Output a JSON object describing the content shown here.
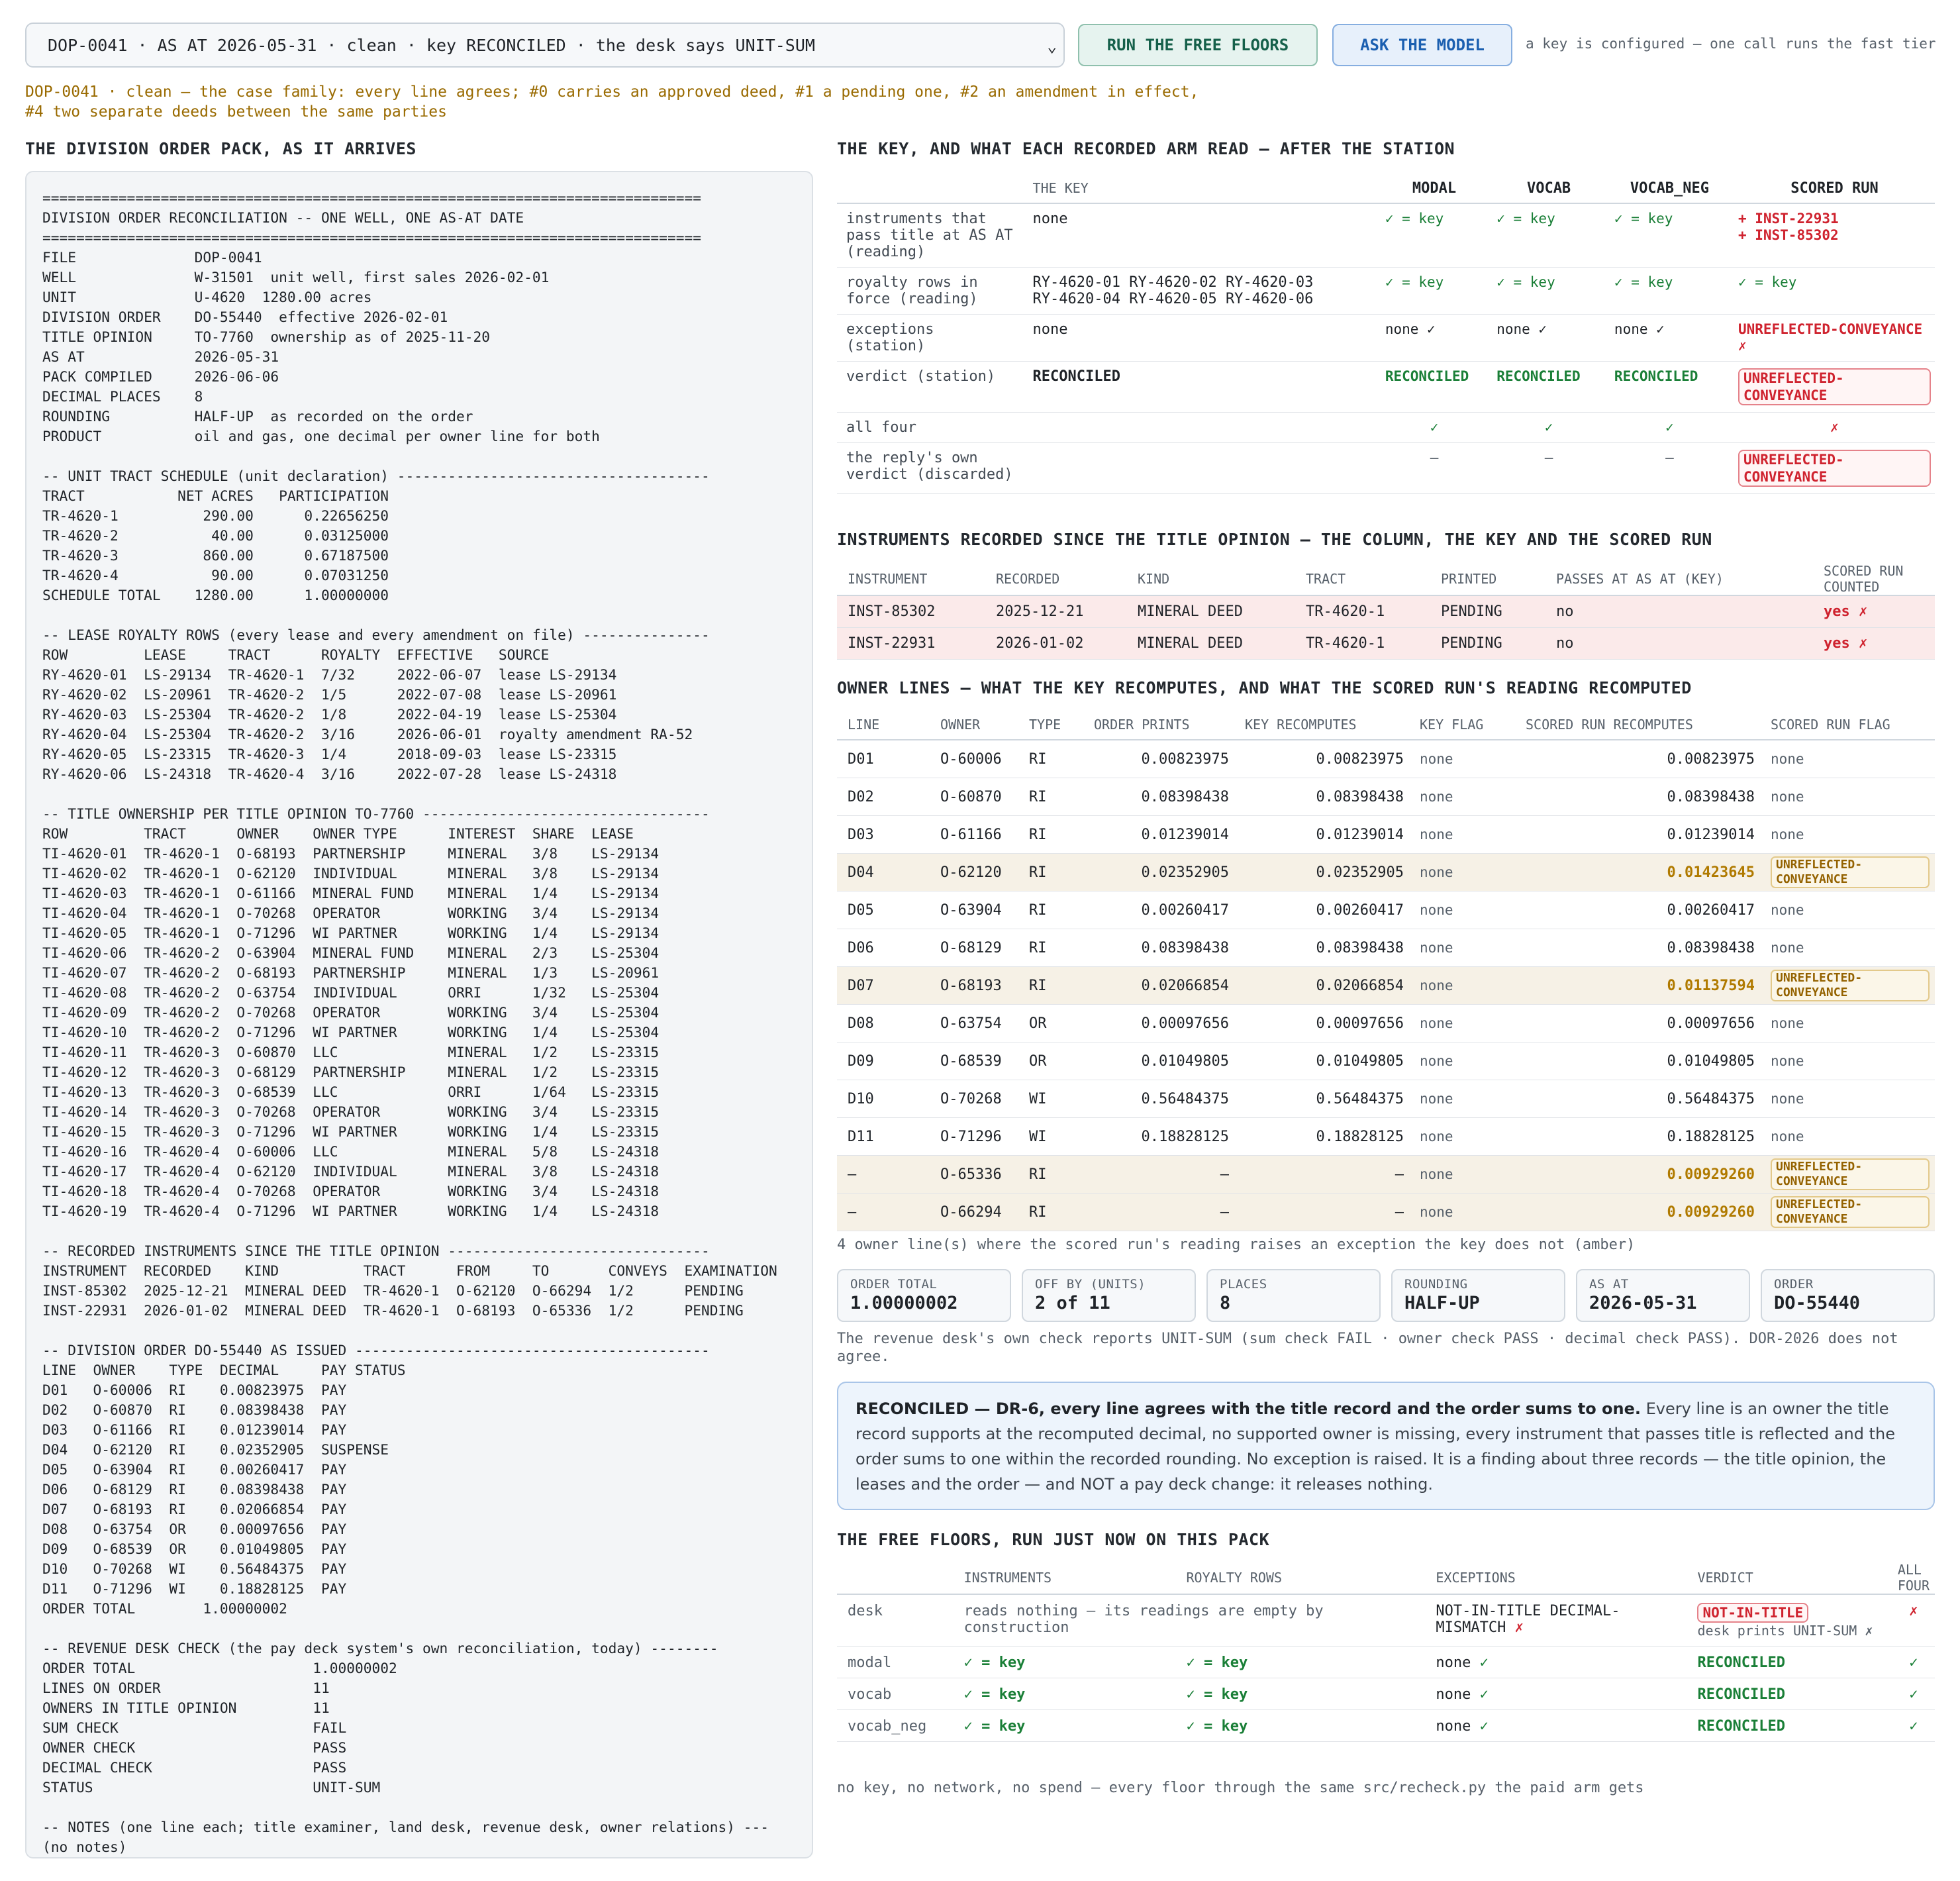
{
  "header": {
    "select_value": "DOP-0041 · AS AT 2026-05-31 · clean · key RECONCILED · the desk says UNIT-SUM",
    "run_floors_label": "RUN THE FREE FLOORS",
    "ask_model_label": "ASK THE MODEL",
    "key_note": "a key is configured — one call runs the fast tier"
  },
  "banner": {
    "line1": "DOP-0041 · clean — the case family: every line agrees; #0 carries an approved deed, #1 a pending one, #2 an amendment in effect,",
    "line2": "#4 two separate deeds between the same parties"
  },
  "sections": {
    "pack": "THE DIVISION ORDER PACK, AS IT ARRIVES",
    "key": "THE KEY, AND WHAT EACH RECORDED ARM READ — AFTER THE STATION",
    "instruments": "INSTRUMENTS RECORDED SINCE THE TITLE OPINION — THE COLUMN, THE KEY AND THE SCORED RUN",
    "owners": "OWNER LINES — WHAT THE KEY RECOMPUTES, AND WHAT THE SCORED RUN'S READING RECOMPUTED",
    "floors": "THE FREE FLOORS, RUN JUST NOW ON THIS PACK"
  },
  "pack_lines": [
    "==============================================================================",
    "DIVISION ORDER RECONCILIATION -- ONE WELL, ONE AS-AT DATE",
    "==============================================================================",
    "FILE              DOP-0041",
    "WELL              W-31501  unit well, first sales 2026-02-01",
    "UNIT              U-4620  1280.00 acres",
    "DIVISION ORDER    DO-55440  effective 2026-02-01",
    "TITLE OPINION     TO-7760  ownership as of 2025-11-20",
    "AS AT             2026-05-31",
    "PACK COMPILED     2026-06-06",
    "DECIMAL PLACES    8",
    "ROUNDING          HALF-UP  as recorded on the order",
    "PRODUCT           oil and gas, one decimal per owner line for both",
    "",
    "-- UNIT TRACT SCHEDULE (unit declaration) -------------------------------------",
    "TRACT           NET ACRES   PARTICIPATION",
    "TR-4620-1          290.00      0.22656250",
    "TR-4620-2           40.00      0.03125000",
    "TR-4620-3          860.00      0.67187500",
    "TR-4620-4           90.00      0.07031250",
    "SCHEDULE TOTAL    1280.00      1.00000000",
    "",
    "-- LEASE ROYALTY ROWS (every lease and every amendment on file) ---------------",
    "ROW         LEASE     TRACT      ROYALTY  EFFECTIVE   SOURCE",
    "RY-4620-01  LS-29134  TR-4620-1  7/32     2022-06-07  lease LS-29134",
    "RY-4620-02  LS-20961  TR-4620-2  1/5      2022-07-08  lease LS-20961",
    "RY-4620-03  LS-25304  TR-4620-2  1/8      2022-04-19  lease LS-25304",
    "RY-4620-04  LS-25304  TR-4620-2  3/16     2026-06-01  royalty amendment RA-52",
    "RY-4620-05  LS-23315  TR-4620-3  1/4      2018-09-03  lease LS-23315",
    "RY-4620-06  LS-24318  TR-4620-4  3/16     2022-07-28  lease LS-24318",
    "",
    "-- TITLE OWNERSHIP PER TITLE OPINION TO-7760 ----------------------------------",
    "ROW         TRACT      OWNER    OWNER TYPE      INTEREST  SHARE  LEASE",
    "TI-4620-01  TR-4620-1  O-68193  PARTNERSHIP     MINERAL   3/8    LS-29134",
    "TI-4620-02  TR-4620-1  O-62120  INDIVIDUAL      MINERAL   3/8    LS-29134",
    "TI-4620-03  TR-4620-1  O-61166  MINERAL FUND    MINERAL   1/4    LS-29134",
    "TI-4620-04  TR-4620-1  O-70268  OPERATOR        WORKING   3/4    LS-29134",
    "TI-4620-05  TR-4620-1  O-71296  WI PARTNER      WORKING   1/4    LS-29134",
    "TI-4620-06  TR-4620-2  O-63904  MINERAL FUND    MINERAL   2/3    LS-25304",
    "TI-4620-07  TR-4620-2  O-68193  PARTNERSHIP     MINERAL   1/3    LS-20961",
    "TI-4620-08  TR-4620-2  O-63754  INDIVIDUAL      ORRI      1/32   LS-25304",
    "TI-4620-09  TR-4620-2  O-70268  OPERATOR        WORKING   3/4    LS-25304",
    "TI-4620-10  TR-4620-2  O-71296  WI PARTNER      WORKING   1/4    LS-25304",
    "TI-4620-11  TR-4620-3  O-60870  LLC             MINERAL   1/2    LS-23315",
    "TI-4620-12  TR-4620-3  O-68129  PARTNERSHIP     MINERAL   1/2    LS-23315",
    "TI-4620-13  TR-4620-3  O-68539  LLC             ORRI      1/64   LS-23315",
    "TI-4620-14  TR-4620-3  O-70268  OPERATOR        WORKING   3/4    LS-23315",
    "TI-4620-15  TR-4620-3  O-71296  WI PARTNER      WORKING   1/4    LS-23315",
    "TI-4620-16  TR-4620-4  O-60006  LLC             MINERAL   5/8    LS-24318",
    "TI-4620-17  TR-4620-4  O-62120  INDIVIDUAL      MINERAL   3/8    LS-24318",
    "TI-4620-18  TR-4620-4  O-70268  OPERATOR        WORKING   3/4    LS-24318",
    "TI-4620-19  TR-4620-4  O-71296  WI PARTNER      WORKING   1/4    LS-24318",
    "",
    "-- RECORDED INSTRUMENTS SINCE THE TITLE OPINION -------------------------------",
    "INSTRUMENT  RECORDED    KIND          TRACT      FROM     TO       CONVEYS  EXAMINATION",
    "INST-85302  2025-12-21  MINERAL DEED  TR-4620-1  O-62120  O-66294  1/2      PENDING",
    "INST-22931  2026-01-02  MINERAL DEED  TR-4620-1  O-68193  O-65336  1/2      PENDING",
    "",
    "-- DIVISION ORDER DO-55440 AS ISSUED ------------------------------------------",
    "LINE  OWNER    TYPE  DECIMAL     PAY STATUS",
    "D01   O-60006  RI    0.00823975  PAY",
    "D02   O-60870  RI    0.08398438  PAY",
    "D03   O-61166  RI    0.01239014  PAY",
    "D04   O-62120  RI    0.02352905  SUSPENSE",
    "D05   O-63904  RI    0.00260417  PAY",
    "D06   O-68129  RI    0.08398438  PAY",
    "D07   O-68193  RI    0.02066854  PAY",
    "D08   O-63754  OR    0.00097656  PAY",
    "D09   O-68539  OR    0.01049805  PAY",
    "D10   O-70268  WI    0.56484375  PAY",
    "D11   O-71296  WI    0.18828125  PAY",
    "ORDER TOTAL        1.00000002",
    "",
    "-- REVENUE DESK CHECK (the pay deck system's own reconciliation, today) --------",
    "ORDER TOTAL                     1.00000002",
    "LINES ON ORDER                  11",
    "OWNERS IN TITLE OPINION         11",
    "SUM CHECK                       FAIL",
    "OWNER CHECK                     PASS",
    "DECIMAL CHECK                   PASS",
    "STATUS                          UNIT-SUM",
    "",
    "-- NOTES (one line each; title examiner, land desk, revenue desk, owner relations) ---",
    "(no notes)"
  ],
  "key_table": {
    "headers": [
      "",
      "THE KEY",
      "MODAL",
      "VOCAB",
      "VOCAB_NEG",
      "SCORED RUN"
    ],
    "rows": [
      {
        "label": "instruments that pass title at AS AT (reading)",
        "key": "none",
        "modal": "✓ = key",
        "vocab": "✓ = key",
        "vocab_neg": "✓ = key",
        "scored": "+ INST-22931\n+ INST-85302"
      },
      {
        "label": "royalty rows in force (reading)",
        "key": "RY-4620-01 RY-4620-02 RY-4620-03\nRY-4620-04 RY-4620-05 RY-4620-06",
        "modal": "✓ = key",
        "vocab": "✓ = key",
        "vocab_neg": "✓ = key",
        "scored": "✓ = key"
      },
      {
        "label": "exceptions (station)",
        "key": "none",
        "modal": "none ✓",
        "vocab": "none ✓",
        "vocab_neg": "none ✓",
        "scored": "UNREFLECTED-CONVEYANCE ✗"
      },
      {
        "label": "verdict (station)",
        "key": "RECONCILED",
        "modal": "RECONCILED",
        "vocab": "RECONCILED",
        "vocab_neg": "RECONCILED",
        "scored": "UNREFLECTED-CONVEYANCE"
      },
      {
        "label": "all four",
        "key": "",
        "modal": "✓",
        "vocab": "✓",
        "vocab_neg": "✓",
        "scored": "✗"
      },
      {
        "label": "the reply's own verdict (discarded)",
        "key": "",
        "modal": "—",
        "vocab": "—",
        "vocab_neg": "—",
        "scored": "UNREFLECTED-CONVEYANCE"
      }
    ]
  },
  "instruments_table": {
    "headers": [
      "INSTRUMENT",
      "RECORDED",
      "KIND",
      "TRACT",
      "PRINTED",
      "PASSES AT AS AT (KEY)",
      "SCORED RUN COUNTED"
    ],
    "rows": [
      {
        "instrument": "INST-85302",
        "recorded": "2025-12-21",
        "kind": "MINERAL DEED",
        "tract": "TR-4620-1",
        "printed": "PENDING",
        "passes": "no",
        "counted": "yes ✗"
      },
      {
        "instrument": "INST-22931",
        "recorded": "2026-01-02",
        "kind": "MINERAL DEED",
        "tract": "TR-4620-1",
        "printed": "PENDING",
        "passes": "no",
        "counted": "yes ✗"
      }
    ]
  },
  "owner_table": {
    "headers": [
      "LINE",
      "OWNER",
      "TYPE",
      "ORDER PRINTS",
      "KEY RECOMPUTES",
      "KEY FLAG",
      "SCORED RUN RECOMPUTES",
      "SCORED RUN FLAG"
    ],
    "rows": [
      {
        "line": "D01",
        "owner": "O-60006",
        "type": "RI",
        "prints": "0.00823975",
        "key": "0.00823975",
        "key_flag": "none",
        "scored": "0.00823975",
        "scored_flag": "none",
        "hit": false
      },
      {
        "line": "D02",
        "owner": "O-60870",
        "type": "RI",
        "prints": "0.08398438",
        "key": "0.08398438",
        "key_flag": "none",
        "scored": "0.08398438",
        "scored_flag": "none",
        "hit": false
      },
      {
        "line": "D03",
        "owner": "O-61166",
        "type": "RI",
        "prints": "0.01239014",
        "key": "0.01239014",
        "key_flag": "none",
        "scored": "0.01239014",
        "scored_flag": "none",
        "hit": false
      },
      {
        "line": "D04",
        "owner": "O-62120",
        "type": "RI",
        "prints": "0.02352905",
        "key": "0.02352905",
        "key_flag": "none",
        "scored": "0.01423645",
        "scored_flag": "UNREFLECTED-CONVEYANCE",
        "hit": true
      },
      {
        "line": "D05",
        "owner": "O-63904",
        "type": "RI",
        "prints": "0.00260417",
        "key": "0.00260417",
        "key_flag": "none",
        "scored": "0.00260417",
        "scored_flag": "none",
        "hit": false
      },
      {
        "line": "D06",
        "owner": "O-68129",
        "type": "RI",
        "prints": "0.08398438",
        "key": "0.08398438",
        "key_flag": "none",
        "scored": "0.08398438",
        "scored_flag": "none",
        "hit": false
      },
      {
        "line": "D07",
        "owner": "O-68193",
        "type": "RI",
        "prints": "0.02066854",
        "key": "0.02066854",
        "key_flag": "none",
        "scored": "0.01137594",
        "scored_flag": "UNREFLECTED-CONVEYANCE",
        "hit": true
      },
      {
        "line": "D08",
        "owner": "O-63754",
        "type": "OR",
        "prints": "0.00097656",
        "key": "0.00097656",
        "key_flag": "none",
        "scored": "0.00097656",
        "scored_flag": "none",
        "hit": false
      },
      {
        "line": "D09",
        "owner": "O-68539",
        "type": "OR",
        "prints": "0.01049805",
        "key": "0.01049805",
        "key_flag": "none",
        "scored": "0.01049805",
        "scored_flag": "none",
        "hit": false
      },
      {
        "line": "D10",
        "owner": "O-70268",
        "type": "WI",
        "prints": "0.56484375",
        "key": "0.56484375",
        "key_flag": "none",
        "scored": "0.56484375",
        "scored_flag": "none",
        "hit": false
      },
      {
        "line": "D11",
        "owner": "O-71296",
        "type": "WI",
        "prints": "0.18828125",
        "key": "0.18828125",
        "key_flag": "none",
        "scored": "0.18828125",
        "scored_flag": "none",
        "hit": false
      },
      {
        "line": "—",
        "owner": "O-65336",
        "type": "RI",
        "prints": "—",
        "key": "—",
        "key_flag": "none",
        "scored": "0.00929260",
        "scored_flag": "UNREFLECTED-CONVEYANCE",
        "hit": true
      },
      {
        "line": "—",
        "owner": "O-66294",
        "type": "RI",
        "prints": "—",
        "key": "—",
        "key_flag": "none",
        "scored": "0.00929260",
        "scored_flag": "UNREFLECTED-CONVEYANCE",
        "hit": true
      }
    ],
    "footnote": "4 owner line(s) where the scored run's reading raises an exception the key does not (amber)"
  },
  "stats": [
    {
      "label": "ORDER TOTAL",
      "value": "1.00000002"
    },
    {
      "label": "OFF BY (UNITS)",
      "value": "2 of 11"
    },
    {
      "label": "PLACES",
      "value": "8"
    },
    {
      "label": "ROUNDING",
      "value": "HALF-UP"
    },
    {
      "label": "AS AT",
      "value": "2026-05-31"
    },
    {
      "label": "ORDER",
      "value": "DO-55440"
    }
  ],
  "desk_note": "The revenue desk's own check reports UNIT-SUM (sum check FAIL · owner check PASS · decimal check PASS). DOR-2026 does not agree.",
  "verdict": {
    "heading": "RECONCILED — DR-6, every line agrees with the title record and the order sums to one.",
    "body": " Every line is an owner the title record supports at the recomputed decimal, no supported owner is missing, every instrument that passes title is reflected and the order sums to one within the recorded rounding. No exception is raised. It is a finding about three records — the title opinion, the leases and the order — and NOT a pay deck change: it releases nothing."
  },
  "floors_table": {
    "headers": [
      "",
      "INSTRUMENTS",
      "ROYALTY ROWS",
      "EXCEPTIONS",
      "VERDICT",
      "ALL FOUR"
    ],
    "rows": [
      {
        "name": "desk",
        "instruments": "reads nothing — its readings are empty by construction",
        "royalty": "",
        "exceptions": "NOT-IN-TITLE DECIMAL-MISMATCH ✗",
        "verdict": "NOT-IN-TITLE",
        "verdict_sub": "desk prints UNIT-SUM ✗",
        "all": "✗"
      },
      {
        "name": "modal",
        "instruments": "✓ = key",
        "royalty": "✓ = key",
        "exceptions": "none ✓",
        "verdict": "RECONCILED",
        "verdict_sub": "",
        "all": "✓"
      },
      {
        "name": "vocab",
        "instruments": "✓ = key",
        "royalty": "✓ = key",
        "exceptions": "none ✓",
        "verdict": "RECONCILED",
        "verdict_sub": "",
        "all": "✓"
      },
      {
        "name": "vocab_neg",
        "instruments": "✓ = key",
        "royalty": "✓ = key",
        "exceptions": "none ✓",
        "verdict": "RECONCILED",
        "verdict_sub": "",
        "all": "✓"
      }
    ],
    "footnote": "no key, no network, no spend — every floor through the same src/recheck.py the paid arm gets"
  }
}
